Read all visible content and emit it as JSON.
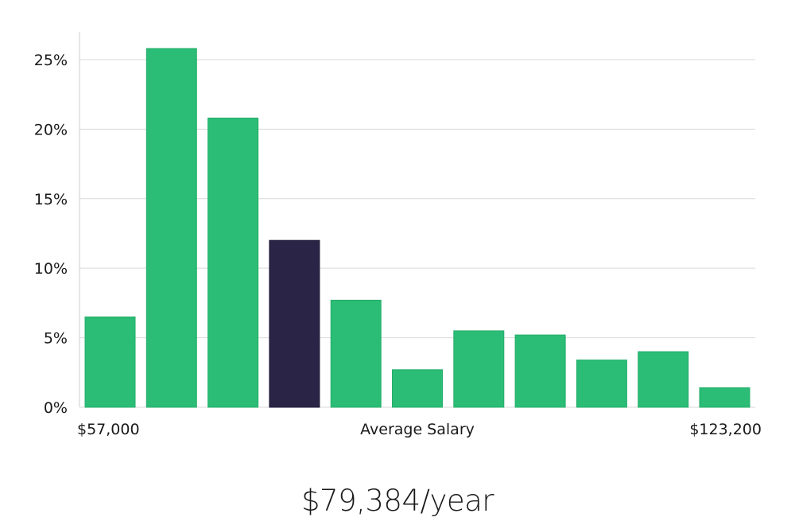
{
  "colors": {
    "bar": "#2bbd75",
    "bar_stroke": "#25ad6a",
    "highlight": "#2a2546",
    "grid": "#d9d9d9",
    "axis": "#cccccc"
  },
  "chart_data": {
    "type": "bar",
    "xlabel": "Average Salary",
    "x_min_label": "$57,000",
    "x_max_label": "$123,200",
    "ylabel": "",
    "ylim": [
      0,
      27
    ],
    "yticks": [
      0,
      5,
      10,
      15,
      20,
      25
    ],
    "ytick_labels": [
      "0%",
      "5%",
      "10%",
      "15%",
      "20%",
      "25%"
    ],
    "grid": true,
    "values": [
      6.5,
      25.8,
      20.8,
      12.0,
      7.7,
      2.7,
      5.5,
      5.2,
      3.4,
      4.0,
      1.4
    ],
    "highlight_index": 3
  },
  "salary_display": "$79,384/year"
}
